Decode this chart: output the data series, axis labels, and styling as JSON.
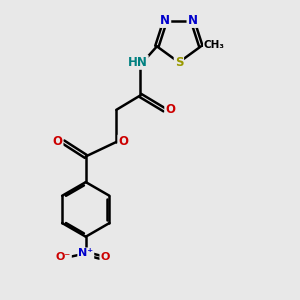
{
  "bg_color": "#e8e8e8",
  "bond_color": "#000000",
  "bond_width": 1.8,
  "dbo": 0.055,
  "figsize": [
    3.0,
    3.0
  ],
  "dpi": 100,
  "N_color": "#0000CC",
  "O_color": "#CC0000",
  "S_color": "#999900",
  "H_color": "#008080",
  "xlim": [
    0.5,
    7.5
  ],
  "ylim": [
    0.2,
    9.5
  ]
}
